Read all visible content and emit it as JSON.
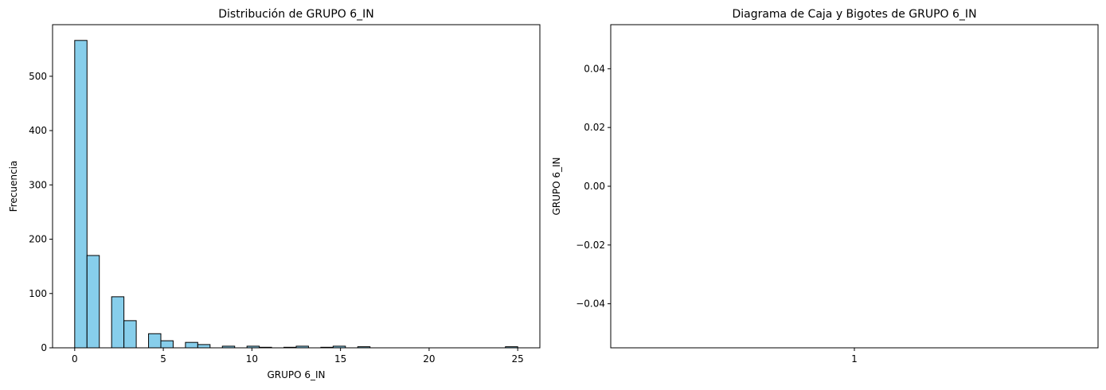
{
  "chart_data": [
    {
      "type": "bar",
      "subtype": "histogram",
      "title": "Distribución de GRUPO 6_IN",
      "xlabel": "GRUPO 6_IN",
      "ylabel": "Frecuencia",
      "xlim": [
        -1.25,
        26.25
      ],
      "ylim": [
        0,
        595
      ],
      "bar_color": "#87ceeb",
      "edge_color": "#000000",
      "x_ticks": [
        0,
        5,
        10,
        15,
        20,
        25
      ],
      "y_ticks": [
        0,
        100,
        200,
        300,
        400,
        500
      ],
      "bin_width": 0.6944,
      "bin_starts": [
        0.0,
        0.6944,
        1.3889,
        2.0833,
        2.7778,
        3.4722,
        4.1667,
        4.8611,
        5.5556,
        6.25,
        6.9444,
        7.6389,
        8.3333,
        9.0278,
        9.7222,
        10.4167,
        11.1111,
        11.8056,
        12.5,
        13.1944,
        13.8889,
        14.5833,
        15.2778,
        15.9722,
        16.6667,
        17.3611,
        18.0556,
        18.75,
        19.4444,
        20.1389,
        20.8333,
        21.5278,
        22.2222,
        22.9167,
        23.6111,
        24.3056
      ],
      "values": [
        566,
        170,
        0,
        94,
        50,
        0,
        26,
        13,
        0,
        10,
        6,
        0,
        3,
        0,
        3,
        1,
        0,
        1,
        3,
        0,
        1,
        3,
        0,
        2,
        0,
        0,
        0,
        0,
        0,
        0,
        0,
        0,
        0,
        0,
        0,
        2
      ],
      "grid": false
    },
    {
      "type": "box",
      "title": "Diagrama de Caja y Bigotes de GRUPO 6_IN",
      "xlabel": "",
      "ylabel": "GRUPO 6_IN",
      "ylim": [
        -0.055,
        0.055
      ],
      "x_ticks": [
        "1"
      ],
      "y_ticks": [
        -0.04,
        -0.02,
        0.0,
        0.02,
        0.04
      ],
      "y_tick_labels": [
        "−0.04",
        "−0.02",
        "0.00",
        "0.02",
        "0.04"
      ],
      "boxes": [],
      "grid": false
    }
  ]
}
